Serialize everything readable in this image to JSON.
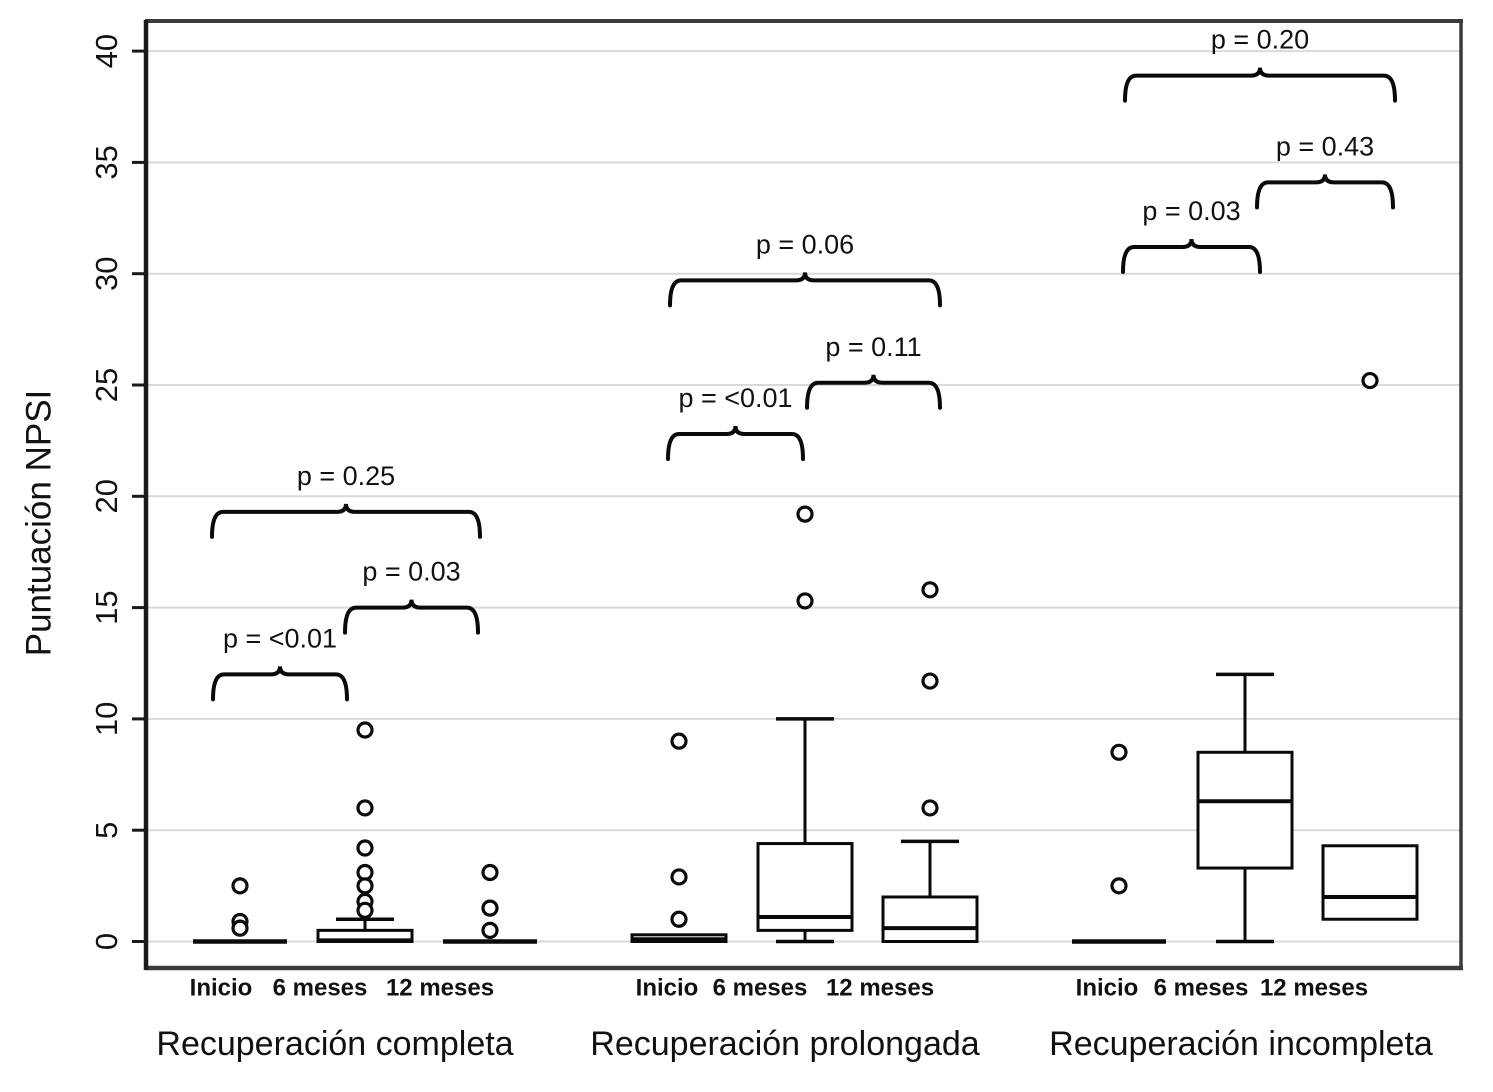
{
  "figure": {
    "background": "#ffffff",
    "colors": {
      "ink": "#0a0a0a",
      "grid": "#d9d9d9",
      "frame": "#3b3b3b",
      "axis": "#1a1a1a",
      "text": "#111111",
      "box_fill": "#ffffff"
    }
  },
  "chart_data": {
    "type": "boxplot",
    "title": "",
    "xlabel": "",
    "ylabel": "Puntuación NPSI",
    "ylim": [
      0,
      40
    ],
    "yticks": [
      0,
      5,
      10,
      15,
      20,
      25,
      30,
      35,
      40
    ],
    "grid": "horizontal",
    "timepoints": [
      "Inicio",
      "6 meses",
      "12 meses"
    ],
    "groups": [
      {
        "label": "Recuperación completa",
        "boxes": [
          {
            "timepoint": "Inicio",
            "min": 0,
            "q1": 0,
            "median": 0,
            "q3": 0,
            "max": 0,
            "outliers": [
              2.5,
              0.9,
              0.6
            ]
          },
          {
            "timepoint": "6 meses",
            "min": 0,
            "q1": 0,
            "median": 0.05,
            "q3": 0.5,
            "max": 1,
            "outliers": [
              9.5,
              6.0,
              4.2,
              3.1,
              2.5,
              1.8,
              1.4
            ]
          },
          {
            "timepoint": "12 meses",
            "min": 0,
            "q1": 0,
            "median": 0,
            "q3": 0,
            "max": 0,
            "outliers": [
              3.1,
              1.5,
              0.5
            ]
          }
        ],
        "comparisons": [
          {
            "between": [
              "Inicio",
              "6 meses"
            ],
            "label": "p = <0.01",
            "height": 12.0
          },
          {
            "between": [
              "6 meses",
              "12 meses"
            ],
            "label": "p = 0.03",
            "height": 15.0
          },
          {
            "between": [
              "Inicio",
              "12 meses"
            ],
            "label": "p = 0.25",
            "height": 19.3
          }
        ]
      },
      {
        "label": "Recuperación prolongada",
        "boxes": [
          {
            "timepoint": "Inicio",
            "min": 0,
            "q1": 0,
            "median": 0.1,
            "q3": 0.3,
            "max": 0.3,
            "outliers": [
              9.0,
              2.9,
              1.0
            ]
          },
          {
            "timepoint": "6 meses",
            "min": 0,
            "q1": 0.5,
            "median": 1.1,
            "q3": 4.4,
            "max": 10,
            "outliers": [
              19.2,
              15.3
            ]
          },
          {
            "timepoint": "12 meses",
            "min": 0,
            "q1": 0,
            "median": 0.6,
            "q3": 2.0,
            "max": 4.5,
            "outliers": [
              15.8,
              11.7,
              6.0
            ]
          }
        ],
        "comparisons": [
          {
            "between": [
              "Inicio",
              "6 meses"
            ],
            "label": "p = <0.01",
            "height": 22.8
          },
          {
            "between": [
              "6 meses",
              "12 meses"
            ],
            "label": "p = 0.11",
            "height": 25.1
          },
          {
            "between": [
              "Inicio",
              "12 meses"
            ],
            "label": "p = 0.06",
            "height": 29.7
          }
        ]
      },
      {
        "label": "Recuperación incompleta",
        "boxes": [
          {
            "timepoint": "Inicio",
            "min": 0,
            "q1": 0,
            "median": 0,
            "q3": 0,
            "max": 0,
            "outliers": [
              8.5,
              2.5
            ]
          },
          {
            "timepoint": "6 meses",
            "min": 0,
            "q1": 3.3,
            "median": 6.3,
            "q3": 8.5,
            "max": 12,
            "outliers": []
          },
          {
            "timepoint": "12 meses",
            "min": 1.0,
            "q1": 1.0,
            "median": 2.0,
            "q3": 4.3,
            "max": 4.3,
            "outliers": [
              25.2
            ]
          }
        ],
        "comparisons": [
          {
            "between": [
              "Inicio",
              "6 meses"
            ],
            "label": "p = 0.03",
            "height": 31.2
          },
          {
            "between": [
              "6 meses",
              "12 meses"
            ],
            "label": "p = 0.43",
            "height": 34.1
          },
          {
            "between": [
              "Inicio",
              "12 meses"
            ],
            "label": "p = 0.20",
            "height": 38.9
          }
        ]
      }
    ]
  }
}
